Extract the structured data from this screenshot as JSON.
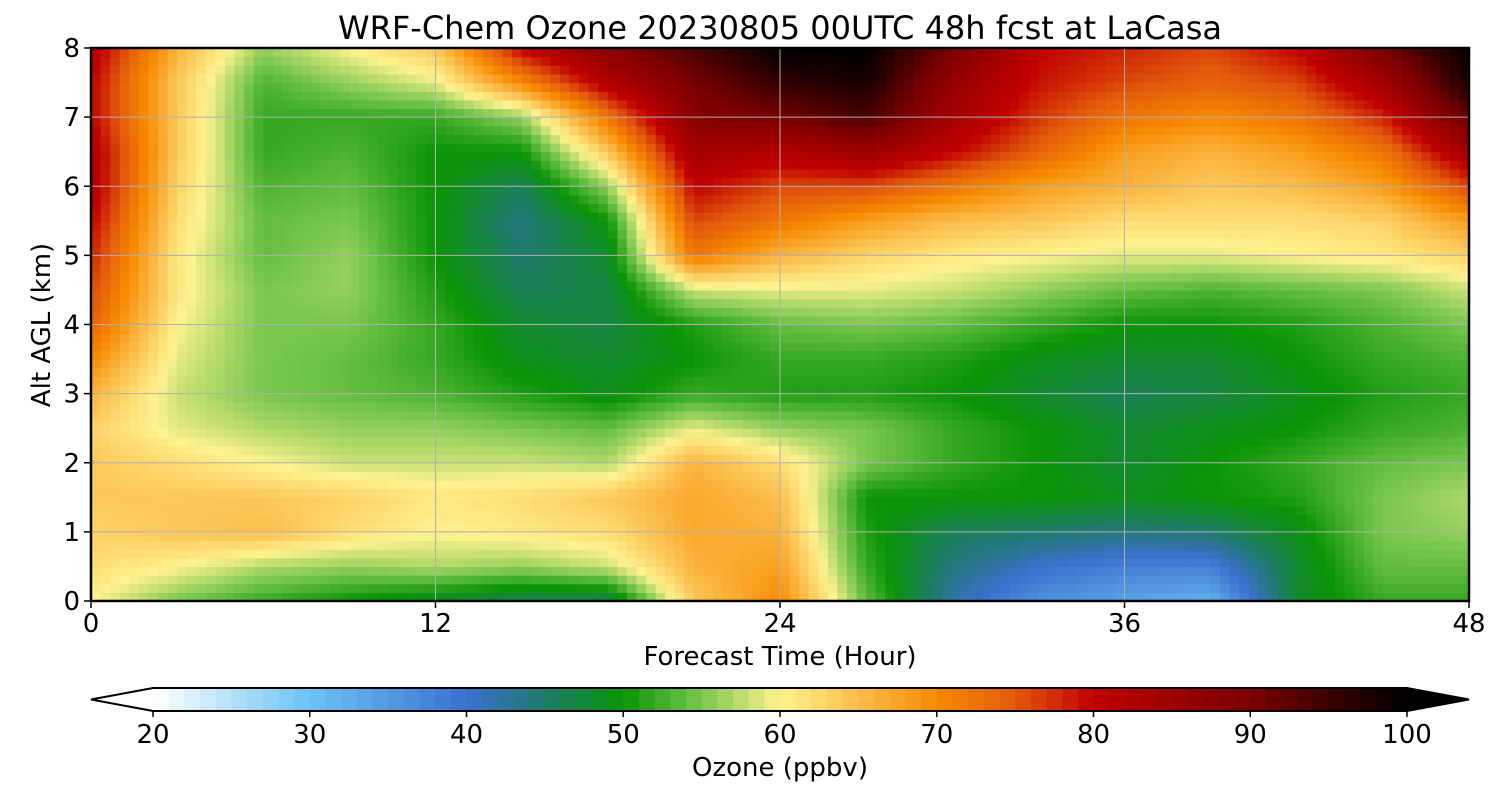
{
  "chart_data": {
    "type": "heatmap",
    "title": "WRF-Chem Ozone  20230805 00UTC 48h fcst at LaCasa",
    "xlabel": "Forecast Time (Hour)",
    "ylabel": "Alt AGL (km)",
    "xlim": [
      0,
      48
    ],
    "ylim": [
      0,
      8
    ],
    "xticks": [
      0,
      12,
      24,
      36,
      48
    ],
    "yticks": [
      0,
      1,
      2,
      3,
      4,
      5,
      6,
      7,
      8
    ],
    "grid": true,
    "x": [
      0,
      3,
      6,
      9,
      12,
      15,
      18,
      21,
      24,
      27,
      30,
      33,
      36,
      39,
      42,
      45,
      48
    ],
    "y": [
      0,
      0.5,
      1,
      1.5,
      2,
      2.5,
      3,
      3.5,
      4,
      4.5,
      5,
      5.5,
      6,
      6.5,
      7,
      7.5,
      8
    ],
    "z": [
      [
        60,
        55,
        52,
        50,
        48,
        46,
        46,
        64,
        70,
        54,
        42,
        36,
        34,
        32,
        48,
        52,
        52
      ],
      [
        62,
        60,
        57,
        56,
        57,
        56,
        58,
        66,
        68,
        52,
        44,
        40,
        38,
        38,
        48,
        54,
        54
      ],
      [
        63,
        64,
        65,
        62,
        60,
        61,
        62,
        67,
        66,
        51,
        46,
        45,
        44,
        45,
        49,
        55,
        56
      ],
      [
        64,
        64,
        64,
        63,
        61,
        62,
        64,
        67,
        65,
        50,
        50,
        50,
        49,
        50,
        51,
        55,
        57
      ],
      [
        64,
        62,
        60,
        58,
        58,
        58,
        57,
        66,
        62,
        55,
        52,
        50,
        48,
        50,
        52,
        54,
        55
      ],
      [
        63,
        59,
        57,
        56,
        56,
        55,
        54,
        59,
        56,
        55,
        52,
        50,
        48,
        49,
        50,
        52,
        53
      ],
      [
        66,
        58,
        55,
        54,
        53,
        51,
        49,
        52,
        51,
        51,
        50,
        48,
        46,
        47,
        49,
        51,
        52
      ],
      [
        70,
        59,
        55,
        54,
        52,
        49,
        48,
        50,
        52,
        52,
        51,
        49,
        48,
        48,
        50,
        52,
        53
      ],
      [
        74,
        60,
        55,
        55,
        52,
        48,
        47,
        51,
        54,
        55,
        54,
        52,
        50,
        50,
        51,
        53,
        55
      ],
      [
        76,
        61,
        55,
        56,
        51,
        46,
        47,
        58,
        59,
        59,
        58,
        56,
        54,
        53,
        54,
        55,
        58
      ],
      [
        78,
        61,
        54,
        56,
        50,
        45,
        48,
        72,
        66,
        63,
        61,
        60,
        59,
        59,
        60,
        61,
        63
      ],
      [
        80,
        62,
        54,
        55,
        50,
        44,
        50,
        76,
        72,
        68,
        65,
        64,
        62,
        62,
        62,
        63,
        68
      ],
      [
        82,
        63,
        53,
        54,
        50,
        46,
        56,
        80,
        76,
        76,
        72,
        68,
        66,
        64,
        65,
        68,
        76
      ],
      [
        82,
        64,
        52,
        53,
        50,
        50,
        64,
        84,
        82,
        85,
        80,
        74,
        68,
        66,
        68,
        72,
        84
      ],
      [
        80,
        64,
        52,
        52,
        52,
        56,
        72,
        88,
        90,
        94,
        84,
        77,
        72,
        70,
        72,
        78,
        92
      ],
      [
        80,
        64,
        53,
        56,
        59,
        70,
        82,
        90,
        96,
        98,
        86,
        79,
        76,
        74,
        76,
        84,
        98
      ],
      [
        82,
        66,
        56,
        60,
        64,
        80,
        88,
        94,
        100,
        100,
        90,
        80,
        78,
        76,
        80,
        90,
        100
      ]
    ],
    "colorbar": {
      "min": 20,
      "max": 100,
      "extend": "both",
      "ticks": [
        20,
        30,
        40,
        50,
        60,
        70,
        80,
        90,
        100
      ],
      "label": "Ozone  (ppbv)",
      "stops": [
        {
          "v": 20,
          "c": "#ffffff"
        },
        {
          "v": 30,
          "c": "#6cc2f5"
        },
        {
          "v": 40,
          "c": "#3b70cf"
        },
        {
          "v": 45,
          "c": "#1f7a6c"
        },
        {
          "v": 50,
          "c": "#0a9406"
        },
        {
          "v": 55,
          "c": "#7ac74f"
        },
        {
          "v": 60,
          "c": "#fff28f"
        },
        {
          "v": 65,
          "c": "#fbbd4b"
        },
        {
          "v": 70,
          "c": "#f78a00"
        },
        {
          "v": 75,
          "c": "#e3590c"
        },
        {
          "v": 80,
          "c": "#c00000"
        },
        {
          "v": 90,
          "c": "#7a0000"
        },
        {
          "v": 100,
          "c": "#000000"
        }
      ]
    }
  }
}
